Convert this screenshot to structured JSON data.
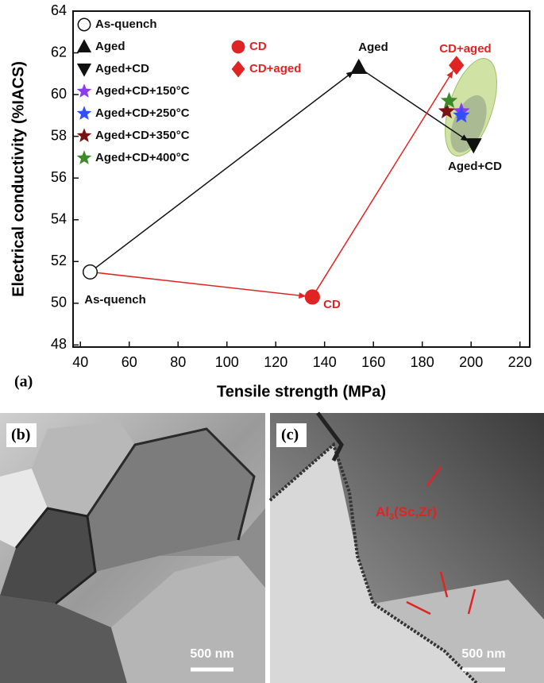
{
  "chart_data": {
    "type": "scatter",
    "xlabel": "Tensile strength (MPa)",
    "ylabel": "Electrical conductivity (%IACS)",
    "xlim": [
      37,
      224
    ],
    "ylim": [
      47.9,
      64
    ],
    "xticks": [
      40,
      60,
      80,
      100,
      120,
      140,
      160,
      180,
      200,
      220
    ],
    "yticks": [
      48,
      50,
      52,
      54,
      56,
      58,
      60,
      62,
      64
    ],
    "series": [
      {
        "name": "As-quench",
        "marker": "open-circle",
        "color": "#111111",
        "x": [
          44
        ],
        "values": [
          51.5
        ]
      },
      {
        "name": "Aged",
        "marker": "triangle-up",
        "color": "#111111",
        "x": [
          154
        ],
        "values": [
          61.3
        ]
      },
      {
        "name": "Aged+CD",
        "marker": "triangle-down",
        "color": "#111111",
        "x": [
          201
        ],
        "values": [
          57.6
        ]
      },
      {
        "name": "Aged+CD+150°C",
        "marker": "star",
        "color": "#8a3cf0",
        "x": [
          196
        ],
        "values": [
          59.2
        ]
      },
      {
        "name": "Aged+CD+250°C",
        "marker": "star",
        "color": "#3050ff",
        "x": [
          196
        ],
        "values": [
          59.0
        ]
      },
      {
        "name": "Aged+CD+350°C",
        "marker": "star",
        "color": "#7a1414",
        "x": [
          190
        ],
        "values": [
          59.2
        ]
      },
      {
        "name": "Aged+CD+400°C",
        "marker": "star",
        "color": "#3e8a2a",
        "x": [
          191
        ],
        "values": [
          59.7
        ]
      },
      {
        "name": "CD",
        "marker": "circle",
        "color": "#e02424",
        "x": [
          135
        ],
        "values": [
          50.3
        ]
      },
      {
        "name": "CD+aged",
        "marker": "diamond",
        "color": "#e02424",
        "x": [
          194
        ],
        "values": [
          61.4
        ]
      }
    ],
    "annotations": [
      "Aged",
      "CD+aged",
      "Aged+CD",
      "As-quench",
      "CD"
    ]
  },
  "panels": {
    "a": "(a)",
    "b": "(b)",
    "c": "(c)"
  },
  "scale_bars": [
    "500 nm",
    "500 nm"
  ],
  "precipitate_label": [
    "Al",
    "3",
    "(Sc,Zr)"
  ]
}
